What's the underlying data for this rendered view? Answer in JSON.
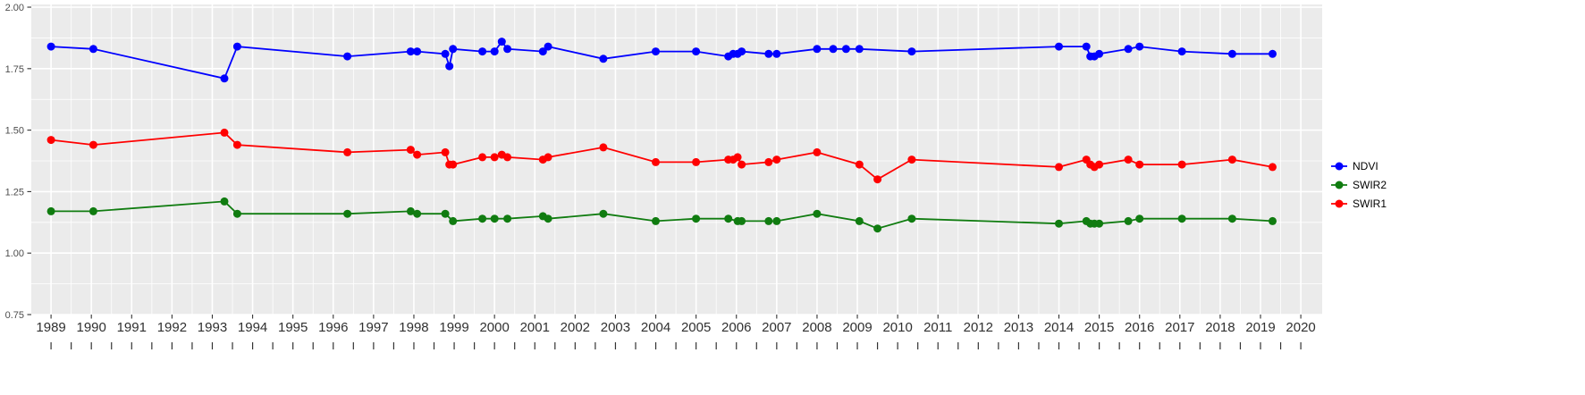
{
  "chart_data": {
    "type": "line",
    "title": "",
    "xlabel": "",
    "ylabel": "",
    "grid": true,
    "legend_position": "right",
    "panel_background": "#EBEBEB",
    "grid_color": "#FFFFFF",
    "tick_label_color": "#4D4D4D",
    "x_label_color": "#303030",
    "xlim": [
      1988.51,
      2020.53
    ],
    "ylim": [
      0.75,
      2.011
    ],
    "x_major_ticks": [
      1989,
      1990,
      1991,
      1992,
      1993,
      1994,
      1995,
      1996,
      1997,
      1998,
      1999,
      2000,
      2001,
      2002,
      2003,
      2004,
      2005,
      2006,
      2007,
      2008,
      2009,
      2010,
      2011,
      2012,
      2013,
      2014,
      2015,
      2016,
      2017,
      2018,
      2019,
      2020
    ],
    "x_tick_labels": [
      "1989",
      "1990",
      "1991",
      "1992",
      "1993",
      "1994",
      "1995",
      "1996",
      "1997",
      "1998",
      "1999",
      "2000",
      "2001",
      "2002",
      "2003",
      "2004",
      "2005",
      "2006",
      "2007",
      "2008",
      "2009",
      "2010",
      "2011",
      "2012",
      "2013",
      "2014",
      "2015",
      "2016",
      "2017",
      "2018",
      "2019",
      "2020"
    ],
    "y_major_ticks": [
      0.75,
      1.0,
      1.25,
      1.5,
      1.75,
      2.0
    ],
    "y_tick_labels": [
      "0.75",
      "1.00",
      "1.25",
      "1.50",
      "1.75",
      "2.00"
    ],
    "y_minor_ticks": [
      0.875,
      1.125,
      1.375,
      1.625,
      1.875
    ],
    "series": [
      {
        "name": "NDVI",
        "color": "#0000FF",
        "points": [
          [
            1989.0,
            1.84
          ],
          [
            1990.05,
            1.83
          ],
          [
            1993.3,
            1.71
          ],
          [
            1993.62,
            1.84
          ],
          [
            1996.35,
            1.8
          ],
          [
            1997.92,
            1.82
          ],
          [
            1998.08,
            1.82
          ],
          [
            1998.78,
            1.81
          ],
          [
            1998.88,
            1.76
          ],
          [
            1998.97,
            1.83
          ],
          [
            1999.7,
            1.82
          ],
          [
            2000.0,
            1.82
          ],
          [
            2000.18,
            1.86
          ],
          [
            2000.32,
            1.83
          ],
          [
            2001.2,
            1.82
          ],
          [
            2001.33,
            1.84
          ],
          [
            2002.7,
            1.79
          ],
          [
            2004.0,
            1.82
          ],
          [
            2005.0,
            1.82
          ],
          [
            2005.8,
            1.8
          ],
          [
            2005.92,
            1.81
          ],
          [
            2006.03,
            1.81
          ],
          [
            2006.13,
            1.82
          ],
          [
            2006.8,
            1.81
          ],
          [
            2007.0,
            1.81
          ],
          [
            2008.0,
            1.83
          ],
          [
            2008.4,
            1.83
          ],
          [
            2008.72,
            1.83
          ],
          [
            2009.05,
            1.83
          ],
          [
            2010.35,
            1.82
          ],
          [
            2014.0,
            1.84
          ],
          [
            2014.68,
            1.84
          ],
          [
            2014.78,
            1.8
          ],
          [
            2014.88,
            1.8
          ],
          [
            2015.0,
            1.81
          ],
          [
            2015.72,
            1.83
          ],
          [
            2016.0,
            1.84
          ],
          [
            2017.05,
            1.82
          ],
          [
            2018.3,
            1.81
          ],
          [
            2019.3,
            1.81
          ]
        ]
      },
      {
        "name": "SWIR2",
        "color": "#107C10",
        "points": [
          [
            1989.0,
            1.17
          ],
          [
            1990.05,
            1.17
          ],
          [
            1993.3,
            1.21
          ],
          [
            1993.62,
            1.16
          ],
          [
            1996.35,
            1.16
          ],
          [
            1997.92,
            1.17
          ],
          [
            1998.08,
            1.16
          ],
          [
            1998.78,
            1.16
          ],
          [
            1998.97,
            1.13
          ],
          [
            1999.7,
            1.14
          ],
          [
            2000.0,
            1.14
          ],
          [
            2000.32,
            1.14
          ],
          [
            2001.2,
            1.15
          ],
          [
            2001.33,
            1.14
          ],
          [
            2002.7,
            1.16
          ],
          [
            2004.0,
            1.13
          ],
          [
            2005.0,
            1.14
          ],
          [
            2005.8,
            1.14
          ],
          [
            2006.03,
            1.13
          ],
          [
            2006.13,
            1.13
          ],
          [
            2006.8,
            1.13
          ],
          [
            2007.0,
            1.13
          ],
          [
            2008.0,
            1.16
          ],
          [
            2009.05,
            1.13
          ],
          [
            2009.5,
            1.1
          ],
          [
            2010.35,
            1.14
          ],
          [
            2014.0,
            1.12
          ],
          [
            2014.68,
            1.13
          ],
          [
            2014.78,
            1.12
          ],
          [
            2014.88,
            1.12
          ],
          [
            2015.0,
            1.12
          ],
          [
            2015.72,
            1.13
          ],
          [
            2016.0,
            1.14
          ],
          [
            2017.05,
            1.14
          ],
          [
            2018.3,
            1.14
          ],
          [
            2019.3,
            1.13
          ]
        ]
      },
      {
        "name": "SWIR1",
        "color": "#FF0000",
        "points": [
          [
            1989.0,
            1.46
          ],
          [
            1990.05,
            1.44
          ],
          [
            1993.3,
            1.49
          ],
          [
            1993.62,
            1.44
          ],
          [
            1996.35,
            1.41
          ],
          [
            1997.92,
            1.42
          ],
          [
            1998.08,
            1.4
          ],
          [
            1998.78,
            1.41
          ],
          [
            1998.88,
            1.36
          ],
          [
            1998.97,
            1.36
          ],
          [
            1999.7,
            1.39
          ],
          [
            2000.0,
            1.39
          ],
          [
            2000.18,
            1.4
          ],
          [
            2000.32,
            1.39
          ],
          [
            2001.2,
            1.38
          ],
          [
            2001.33,
            1.39
          ],
          [
            2002.7,
            1.43
          ],
          [
            2004.0,
            1.37
          ],
          [
            2005.0,
            1.37
          ],
          [
            2005.8,
            1.38
          ],
          [
            2005.92,
            1.38
          ],
          [
            2006.03,
            1.39
          ],
          [
            2006.13,
            1.36
          ],
          [
            2006.8,
            1.37
          ],
          [
            2007.0,
            1.38
          ],
          [
            2008.0,
            1.41
          ],
          [
            2009.05,
            1.36
          ],
          [
            2009.5,
            1.3
          ],
          [
            2010.35,
            1.38
          ],
          [
            2014.0,
            1.35
          ],
          [
            2014.68,
            1.38
          ],
          [
            2014.78,
            1.36
          ],
          [
            2014.88,
            1.35
          ],
          [
            2015.0,
            1.36
          ],
          [
            2015.72,
            1.38
          ],
          [
            2016.0,
            1.36
          ],
          [
            2017.05,
            1.36
          ],
          [
            2018.3,
            1.38
          ],
          [
            2019.3,
            1.35
          ]
        ]
      }
    ],
    "legend": {
      "items": [
        {
          "label": "NDVI",
          "color": "#0000FF"
        },
        {
          "label": "SWIR2",
          "color": "#107C10"
        },
        {
          "label": "SWIR1",
          "color": "#FF0000"
        }
      ]
    }
  }
}
